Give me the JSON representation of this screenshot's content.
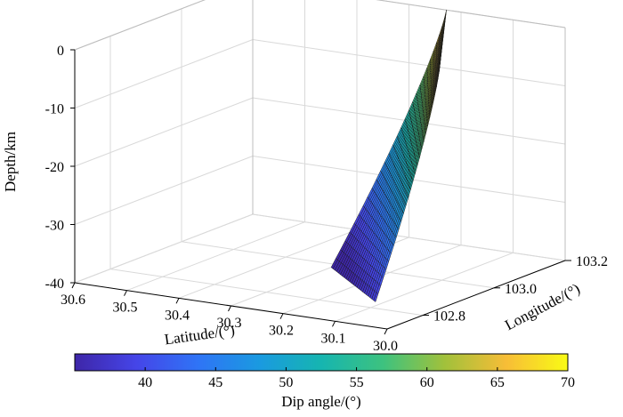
{
  "chart_data": {
    "type": "surface3d",
    "title": "",
    "zlabel": "Depth/km",
    "xlabel": "Latitude/(°)",
    "ylabel": "Longitude/(°)",
    "colorbar_label": "Dip angle/(°)",
    "z_ticks": [
      "0",
      "-10",
      "-20",
      "-30",
      "-40"
    ],
    "z_tick_values": [
      0,
      -10,
      -20,
      -30,
      -40
    ],
    "zlim": [
      -40,
      0
    ],
    "lat_ticks": [
      "30.6",
      "30.5",
      "30.4",
      "30.3",
      "30.2",
      "30.1",
      "30.0"
    ],
    "lat_tick_values": [
      30.6,
      30.5,
      30.4,
      30.3,
      30.2,
      30.1,
      30.0
    ],
    "lon_ticks": [
      "102.8",
      "103.0",
      "103.2"
    ],
    "lon_tick_values": [
      102.8,
      103.0,
      103.2
    ],
    "colorbar_ticks": [
      "40",
      "45",
      "50",
      "55",
      "60",
      "65",
      "70"
    ],
    "colorbar_tick_values": [
      40,
      45,
      50,
      55,
      60,
      65,
      70
    ],
    "colorbar_range": [
      35,
      70
    ],
    "colormap": "parula",
    "grid": true,
    "surface": {
      "top_depth_km": 0,
      "bottom_depth_km": -38,
      "dip_range_deg": [
        35,
        70
      ],
      "dip_gradient": "increases from ~36 at deep down-dip edge to ~70 near the shallow north-east edge"
    }
  },
  "colors": {
    "low": "#3e26a8",
    "mid": "#16b5b0",
    "high": "#f9fb15",
    "mesh_edge": "#1a1a1a",
    "grid": "#d9d9d9"
  }
}
